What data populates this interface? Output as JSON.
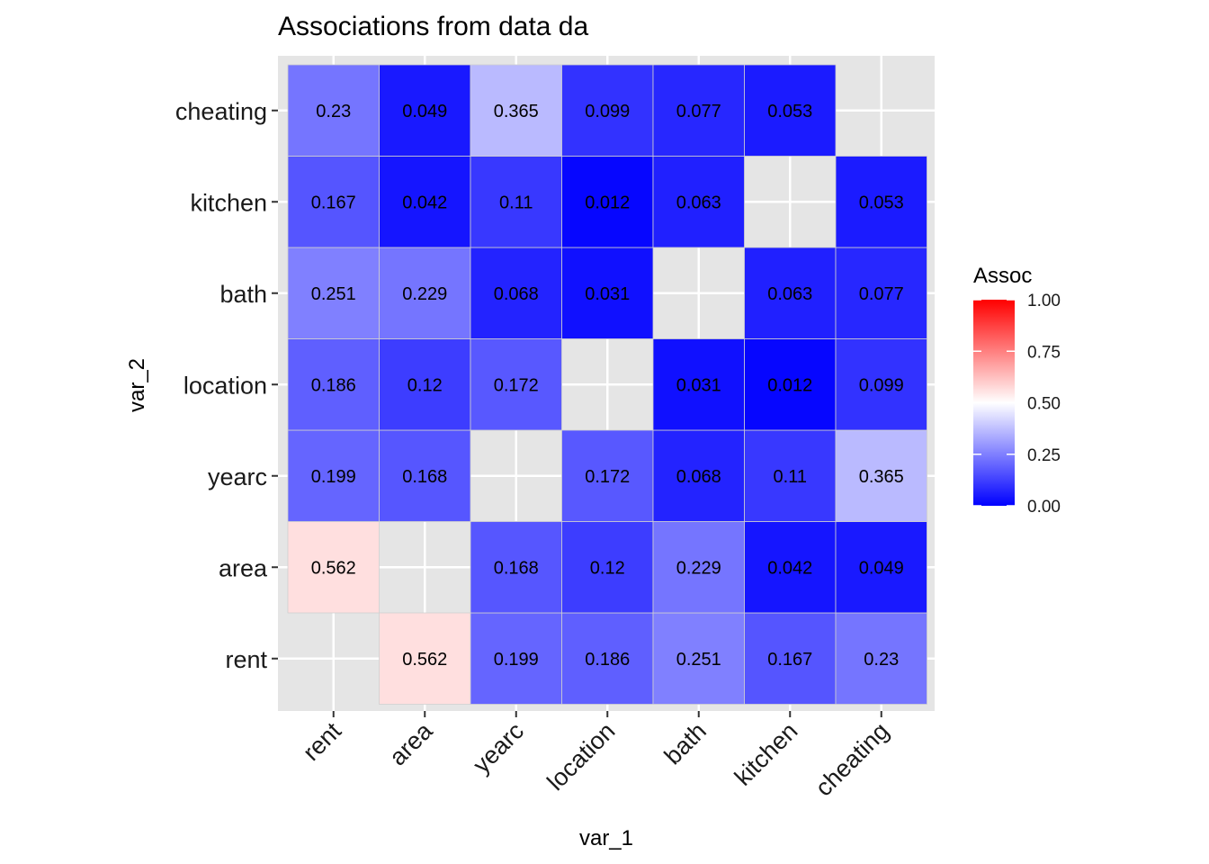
{
  "chart_data": {
    "type": "heatmap",
    "title": "Associations from data da",
    "xlabel": "var_1",
    "ylabel": "var_2",
    "x_categories": [
      "rent",
      "area",
      "yearc",
      "location",
      "bath",
      "kitchen",
      "cheating"
    ],
    "y_categories": [
      "rent",
      "area",
      "yearc",
      "location",
      "bath",
      "kitchen",
      "cheating"
    ],
    "cells": [
      {
        "x": "area",
        "y": "rent",
        "value": 0.562,
        "label": "0.562"
      },
      {
        "x": "yearc",
        "y": "rent",
        "value": 0.199,
        "label": "0.199"
      },
      {
        "x": "location",
        "y": "rent",
        "value": 0.186,
        "label": "0.186"
      },
      {
        "x": "bath",
        "y": "rent",
        "value": 0.251,
        "label": "0.251"
      },
      {
        "x": "kitchen",
        "y": "rent",
        "value": 0.167,
        "label": "0.167"
      },
      {
        "x": "cheating",
        "y": "rent",
        "value": 0.23,
        "label": "0.23"
      },
      {
        "x": "rent",
        "y": "area",
        "value": 0.562,
        "label": "0.562"
      },
      {
        "x": "yearc",
        "y": "area",
        "value": 0.168,
        "label": "0.168"
      },
      {
        "x": "location",
        "y": "area",
        "value": 0.12,
        "label": "0.12"
      },
      {
        "x": "bath",
        "y": "area",
        "value": 0.229,
        "label": "0.229"
      },
      {
        "x": "kitchen",
        "y": "area",
        "value": 0.042,
        "label": "0.042"
      },
      {
        "x": "cheating",
        "y": "area",
        "value": 0.049,
        "label": "0.049"
      },
      {
        "x": "rent",
        "y": "yearc",
        "value": 0.199,
        "label": "0.199"
      },
      {
        "x": "area",
        "y": "yearc",
        "value": 0.168,
        "label": "0.168"
      },
      {
        "x": "location",
        "y": "yearc",
        "value": 0.172,
        "label": "0.172"
      },
      {
        "x": "bath",
        "y": "yearc",
        "value": 0.068,
        "label": "0.068"
      },
      {
        "x": "kitchen",
        "y": "yearc",
        "value": 0.11,
        "label": "0.11"
      },
      {
        "x": "cheating",
        "y": "yearc",
        "value": 0.365,
        "label": "0.365"
      },
      {
        "x": "rent",
        "y": "location",
        "value": 0.186,
        "label": "0.186"
      },
      {
        "x": "area",
        "y": "location",
        "value": 0.12,
        "label": "0.12"
      },
      {
        "x": "yearc",
        "y": "location",
        "value": 0.172,
        "label": "0.172"
      },
      {
        "x": "bath",
        "y": "location",
        "value": 0.031,
        "label": "0.031"
      },
      {
        "x": "kitchen",
        "y": "location",
        "value": 0.012,
        "label": "0.012"
      },
      {
        "x": "cheating",
        "y": "location",
        "value": 0.099,
        "label": "0.099"
      },
      {
        "x": "rent",
        "y": "bath",
        "value": 0.251,
        "label": "0.251"
      },
      {
        "x": "area",
        "y": "bath",
        "value": 0.229,
        "label": "0.229"
      },
      {
        "x": "yearc",
        "y": "bath",
        "value": 0.068,
        "label": "0.068"
      },
      {
        "x": "location",
        "y": "bath",
        "value": 0.031,
        "label": "0.031"
      },
      {
        "x": "kitchen",
        "y": "bath",
        "value": 0.063,
        "label": "0.063"
      },
      {
        "x": "cheating",
        "y": "bath",
        "value": 0.077,
        "label": "0.077"
      },
      {
        "x": "rent",
        "y": "kitchen",
        "value": 0.167,
        "label": "0.167"
      },
      {
        "x": "area",
        "y": "kitchen",
        "value": 0.042,
        "label": "0.042"
      },
      {
        "x": "yearc",
        "y": "kitchen",
        "value": 0.11,
        "label": "0.11"
      },
      {
        "x": "location",
        "y": "kitchen",
        "value": 0.012,
        "label": "0.012"
      },
      {
        "x": "bath",
        "y": "kitchen",
        "value": 0.063,
        "label": "0.063"
      },
      {
        "x": "cheating",
        "y": "kitchen",
        "value": 0.053,
        "label": "0.053"
      },
      {
        "x": "rent",
        "y": "cheating",
        "value": 0.23,
        "label": "0.23"
      },
      {
        "x": "area",
        "y": "cheating",
        "value": 0.049,
        "label": "0.049"
      },
      {
        "x": "yearc",
        "y": "cheating",
        "value": 0.365,
        "label": "0.365"
      },
      {
        "x": "location",
        "y": "cheating",
        "value": 0.099,
        "label": "0.099"
      },
      {
        "x": "bath",
        "y": "cheating",
        "value": 0.077,
        "label": "0.077"
      },
      {
        "x": "kitchen",
        "y": "cheating",
        "value": 0.053,
        "label": "0.053"
      }
    ],
    "legend": {
      "title": "Assoc",
      "ticks": [
        {
          "value": 1.0,
          "label": "1.00"
        },
        {
          "value": 0.75,
          "label": "0.75"
        },
        {
          "value": 0.5,
          "label": "0.50"
        },
        {
          "value": 0.25,
          "label": "0.25"
        },
        {
          "value": 0.0,
          "label": "0.00"
        }
      ],
      "limits": [
        0,
        1
      ],
      "low_color": "#0000ff",
      "mid_color": "#ffffff",
      "high_color": "#ff0000",
      "midpoint": 0.5,
      "placement": "right"
    },
    "panel_background": "#e5e5e5",
    "grid": true
  }
}
